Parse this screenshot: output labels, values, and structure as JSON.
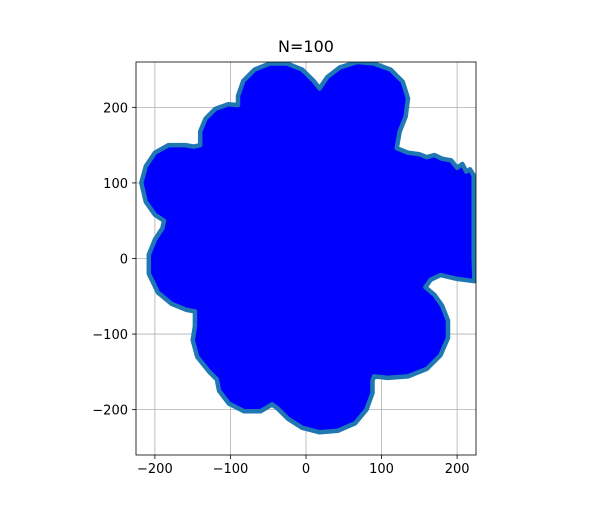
{
  "chart_data": {
    "type": "area",
    "title": "N=100",
    "xlabel": "",
    "ylabel": "",
    "xlim": [
      -225,
      225
    ],
    "ylim": [
      -260,
      260
    ],
    "xticks": [
      -200,
      -100,
      0,
      100,
      200
    ],
    "yticks": [
      -200,
      -100,
      0,
      100,
      200
    ],
    "xtick_labels": [
      "−200",
      "−100",
      "0",
      "100",
      "200"
    ],
    "ytick_labels": [
      "−200",
      "−100",
      "0",
      "100",
      "200"
    ],
    "grid": true,
    "fill_color": "#0000ff",
    "edge_color": "#1f77b4",
    "series": [
      {
        "points": [
          [
            223,
            -30
          ],
          [
            200,
            -27
          ],
          [
            178,
            -22
          ],
          [
            165,
            -28
          ],
          [
            158,
            -38
          ],
          [
            170,
            -48
          ],
          [
            180,
            -62
          ],
          [
            188,
            -82
          ],
          [
            188,
            -105
          ],
          [
            178,
            -128
          ],
          [
            160,
            -146
          ],
          [
            135,
            -156
          ],
          [
            108,
            -158
          ],
          [
            90,
            -156
          ],
          [
            88,
            -162
          ],
          [
            88,
            -178
          ],
          [
            80,
            -200
          ],
          [
            65,
            -218
          ],
          [
            42,
            -228
          ],
          [
            18,
            -230
          ],
          [
            -5,
            -224
          ],
          [
            -24,
            -212
          ],
          [
            -38,
            -198
          ],
          [
            -45,
            -193
          ],
          [
            -60,
            -202
          ],
          [
            -82,
            -202
          ],
          [
            -102,
            -192
          ],
          [
            -115,
            -175
          ],
          [
            -118,
            -160
          ],
          [
            -128,
            -150
          ],
          [
            -144,
            -130
          ],
          [
            -150,
            -108
          ],
          [
            -147,
            -90
          ],
          [
            -147,
            -70
          ],
          [
            -158,
            -68
          ],
          [
            -178,
            -60
          ],
          [
            -196,
            -45
          ],
          [
            -208,
            -20
          ],
          [
            -208,
            5
          ],
          [
            -200,
            25
          ],
          [
            -190,
            40
          ],
          [
            -188,
            50
          ],
          [
            -200,
            58
          ],
          [
            -212,
            75
          ],
          [
            -218,
            100
          ],
          [
            -212,
            122
          ],
          [
            -200,
            140
          ],
          [
            -182,
            150
          ],
          [
            -160,
            150
          ],
          [
            -148,
            148
          ],
          [
            -140,
            150
          ],
          [
            -140,
            168
          ],
          [
            -133,
            185
          ],
          [
            -120,
            198
          ],
          [
            -103,
            204
          ],
          [
            -90,
            203
          ],
          [
            -90,
            215
          ],
          [
            -83,
            235
          ],
          [
            -68,
            250
          ],
          [
            -48,
            258
          ],
          [
            -25,
            258
          ],
          [
            -5,
            250
          ],
          [
            10,
            235
          ],
          [
            18,
            225
          ],
          [
            28,
            240
          ],
          [
            45,
            253
          ],
          [
            68,
            260
          ],
          [
            90,
            258
          ],
          [
            112,
            250
          ],
          [
            128,
            234
          ],
          [
            135,
            212
          ],
          [
            132,
            188
          ],
          [
            124,
            168
          ],
          [
            120,
            146
          ],
          [
            135,
            140
          ],
          [
            150,
            138
          ],
          [
            160,
            134
          ],
          [
            170,
            137
          ],
          [
            180,
            132
          ],
          [
            192,
            130
          ],
          [
            200,
            120
          ],
          [
            207,
            125
          ],
          [
            212,
            115
          ],
          [
            217,
            118
          ],
          [
            222,
            110
          ],
          [
            222,
            80
          ],
          [
            222,
            40
          ],
          [
            222,
            0
          ],
          [
            223,
            -30
          ]
        ]
      }
    ]
  }
}
